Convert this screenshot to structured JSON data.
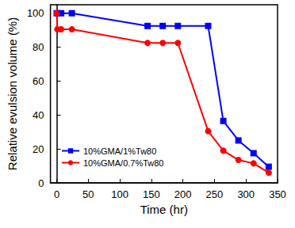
{
  "chart_data": {
    "type": "line",
    "x_label": "Time (hr)",
    "y_label": "Relative evulsion volume (%)",
    "xlim": [
      -10,
      350
    ],
    "xticks": [
      0,
      50,
      100,
      150,
      200,
      250,
      300,
      350
    ],
    "ylim": [
      0,
      105
    ],
    "yticks": [
      0,
      20,
      40,
      60,
      80,
      100
    ],
    "grid": false,
    "legend": "lower left",
    "series": [
      {
        "name": "10%GMA/1%Tw80",
        "color": "#0000ff",
        "marker": "square",
        "line_style": "solid",
        "x": [
          0,
          7,
          24,
          144,
          168,
          192,
          240,
          264,
          288,
          312,
          336
        ],
        "values": [
          100,
          100,
          100,
          92.5,
          92.5,
          92.5,
          92.5,
          36.5,
          25,
          17.5,
          9.5
        ]
      },
      {
        "name": "10%GMA/0.7%Tw80",
        "color": "#ff0000",
        "marker": "circle",
        "line_style": "solid",
        "x": [
          0,
          1,
          7,
          24,
          144,
          168,
          192,
          240,
          264,
          288,
          312,
          336
        ],
        "values": [
          100,
          90.5,
          90.5,
          90.5,
          82.5,
          82.5,
          82.5,
          30.5,
          19,
          13.5,
          11.5,
          6
        ]
      }
    ]
  }
}
